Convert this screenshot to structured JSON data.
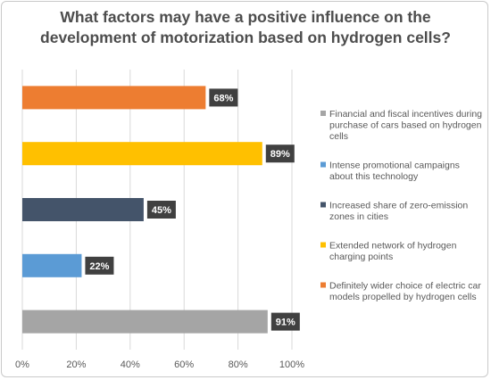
{
  "chart_data": {
    "type": "bar",
    "orientation": "horizontal",
    "title_lines": [
      "What factors may have a positive influence on the",
      "development of motorization based on hydrogen cells?"
    ],
    "categories": [
      "Definitely wider choice of electric car models propelled by hydrogen cells",
      "Extended network of hydrogen charging points",
      "Increased share of zero-emission zones in cities",
      "Intense promotional campaigns about this technology",
      "Financial and fiscal incentives during purchase of cars based on hydrogen cells"
    ],
    "values": [
      68,
      89,
      45,
      22,
      91
    ],
    "value_labels": [
      "68%",
      "89%",
      "45%",
      "22%",
      "91%"
    ],
    "colors": [
      "#ED7D31",
      "#FFC000",
      "#44546A",
      "#5B9BD5",
      "#A5A5A5"
    ],
    "xlim": [
      0,
      100
    ],
    "xticks": [
      0,
      20,
      40,
      60,
      80,
      100
    ],
    "xtick_labels": [
      "0%",
      "20%",
      "40%",
      "60%",
      "80%",
      "100%"
    ],
    "grid": true,
    "legend_position": "right",
    "legend": [
      {
        "lines": [
          "Financial and fiscal incentives during",
          "purchase of cars based on hydrogen",
          "cells"
        ],
        "color": "#A5A5A5"
      },
      {
        "lines": [
          "Intense promotional campaigns",
          "about this technology"
        ],
        "color": "#5B9BD5"
      },
      {
        "lines": [
          "Increased share of zero-emission",
          "zones in cities"
        ],
        "color": "#44546A"
      },
      {
        "lines": [
          "Extended network of hydrogen",
          "charging points"
        ],
        "color": "#FFC000"
      },
      {
        "lines": [
          "Definitely wider choice of electric car",
          "models propelled by hydrogen cells"
        ],
        "color": "#ED7D31"
      }
    ]
  }
}
